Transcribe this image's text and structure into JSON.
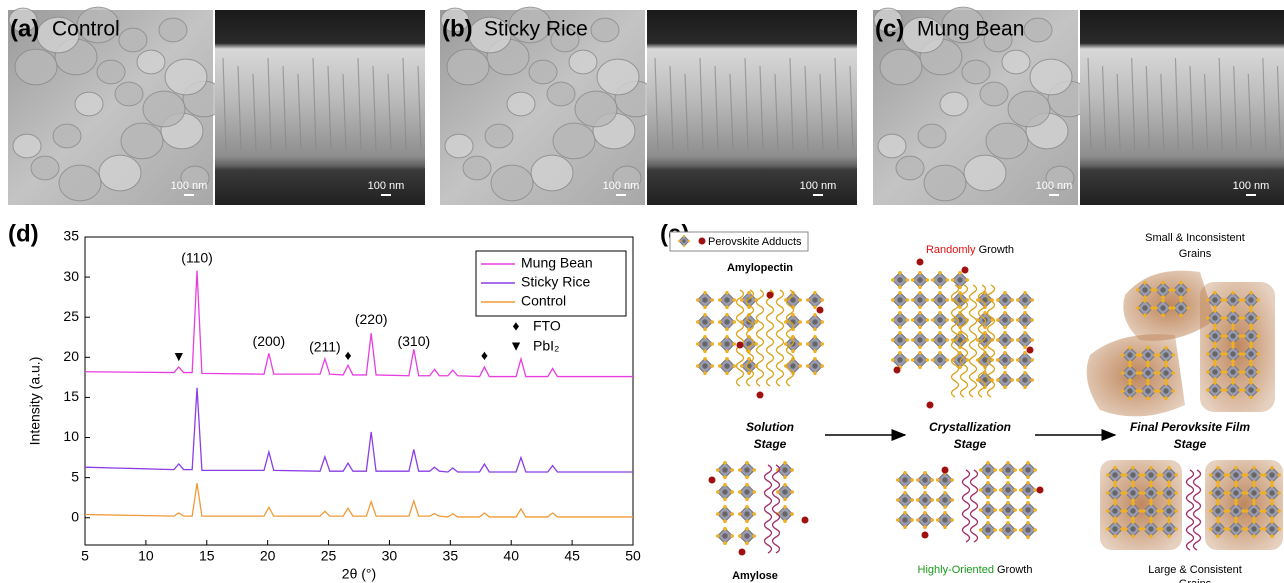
{
  "panels": {
    "a": {
      "label": "(a)",
      "title": "Control",
      "scale_top": "100 nm",
      "scale_cross": "100 nm"
    },
    "b": {
      "label": "(b)",
      "title": "Sticky Rice",
      "scale_top": "100 nm",
      "scale_cross": "100 nm"
    },
    "c": {
      "label": "(c)",
      "title": "Mung Bean",
      "scale_top": "100 nm",
      "scale_cross": "100 nm"
    },
    "d": {
      "label": "(d)"
    },
    "e": {
      "label": "(e)"
    }
  },
  "chart_data": {
    "type": "line",
    "xlabel": "2θ (°)",
    "ylabel": "Intensity (a.u.)",
    "x": [
      5,
      12.3,
      12.7,
      13.1,
      13.8,
      14.2,
      14.6,
      19.7,
      20.1,
      20.5,
      24.3,
      24.7,
      25.1,
      26.2,
      26.6,
      27.0,
      28.1,
      28.5,
      28.9,
      31.6,
      32.0,
      32.4,
      33.3,
      33.7,
      34.1,
      34.8,
      35.2,
      35.6,
      37.4,
      37.8,
      38.2,
      40.4,
      40.8,
      41.2,
      43.0,
      43.4,
      43.8,
      50
    ],
    "series": [
      {
        "name": "Mung Bean",
        "color": "#e83ee0",
        "values": [
          18.2,
          18.1,
          18.8,
          18.1,
          18.1,
          30.8,
          18.0,
          17.9,
          20.5,
          17.9,
          17.9,
          19.8,
          17.9,
          17.8,
          19.0,
          17.8,
          17.8,
          23.0,
          17.8,
          17.7,
          21.0,
          17.7,
          17.7,
          18.5,
          17.7,
          17.7,
          18.4,
          17.7,
          17.6,
          18.8,
          17.6,
          17.6,
          19.8,
          17.6,
          17.6,
          18.6,
          17.6,
          17.6
        ]
      },
      {
        "name": "Sticky Rice",
        "color": "#8a3ee6",
        "values": [
          6.3,
          6.0,
          6.7,
          6.0,
          6.0,
          16.2,
          5.9,
          5.9,
          8.2,
          5.9,
          5.8,
          7.6,
          5.8,
          5.8,
          6.8,
          5.8,
          5.8,
          10.7,
          5.8,
          5.8,
          8.5,
          5.8,
          5.8,
          6.3,
          5.8,
          5.7,
          6.2,
          5.7,
          5.7,
          6.7,
          5.7,
          5.7,
          7.5,
          5.7,
          5.7,
          6.5,
          5.7,
          5.7
        ]
      },
      {
        "name": "Control",
        "color": "#f09a3a",
        "values": [
          0.4,
          0.2,
          0.6,
          0.2,
          0.2,
          4.3,
          0.2,
          0.2,
          1.3,
          0.2,
          0.2,
          0.8,
          0.2,
          0.2,
          1.2,
          0.2,
          0.2,
          2.0,
          0.2,
          0.2,
          2.1,
          0.2,
          0.2,
          0.5,
          0.2,
          0.1,
          0.5,
          0.1,
          0.1,
          0.6,
          0.1,
          0.1,
          1.1,
          0.1,
          0.1,
          0.6,
          0.1,
          0.1
        ]
      }
    ],
    "xlim": [
      5,
      50
    ],
    "ylim": [
      -3.4,
      35
    ],
    "xticks": [
      5,
      10,
      15,
      20,
      25,
      30,
      35,
      40,
      45,
      50
    ],
    "yticks": [
      0,
      5,
      10,
      15,
      20,
      25,
      30,
      35
    ],
    "legend": "upper right",
    "markers": [
      {
        "symbol": "♦",
        "name": "FTO"
      },
      {
        "symbol": "▼",
        "name": "PbI₂"
      }
    ],
    "annotations": [
      "(110)",
      "(200)",
      "(211)",
      "(220)",
      "(310)",
      "♦",
      "♦",
      "▼"
    ]
  },
  "schematic": {
    "adduct_legend": "Perovskite Adducts",
    "amylopectin": "Amylopectin",
    "amylose": "Amylose",
    "stage1": [
      "Solution",
      "Stage"
    ],
    "stage2": [
      "Crystallization",
      "Stage"
    ],
    "stage3": [
      "Final Perovksite Film",
      "Stage"
    ],
    "top_growth": {
      "highlight": "Randomly",
      "rest": "Growth"
    },
    "top_grains": [
      "Small & Inconsistent",
      "Grains"
    ],
    "bottom_growth": {
      "highlight": "Highly-Oriented",
      "rest": "Growth"
    },
    "bottom_grains": [
      "Large & Consistent",
      "Grains"
    ]
  }
}
